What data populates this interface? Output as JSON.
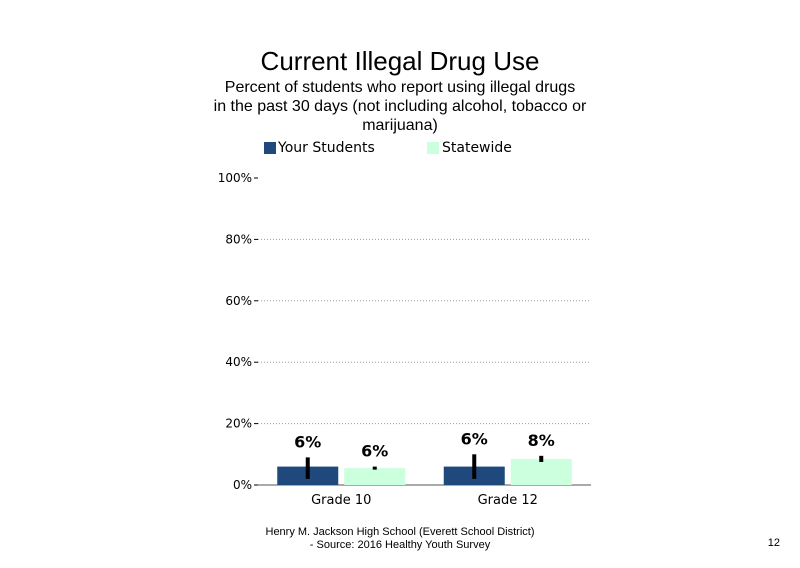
{
  "chart_data": {
    "type": "bar",
    "title": "Current Illegal Drug Use",
    "subtitle_lines": [
      "Percent of students who report using illegal drugs",
      "in the past 30 days (not including alcohol, tobacco or",
      "marijuana)"
    ],
    "categories": [
      "Grade 10",
      "Grade 12"
    ],
    "series": [
      {
        "name": "Your Students",
        "color": "#1f497d",
        "values": [
          6,
          6
        ],
        "labels": [
          "6%",
          "6%"
        ],
        "error_low": [
          2,
          2
        ],
        "error_high": [
          9,
          10
        ]
      },
      {
        "name": "Statewide",
        "color": "#ccffdd",
        "values": [
          5.5,
          8.5
        ],
        "labels": [
          "6%",
          "8%"
        ],
        "error_low": [
          5,
          7.5
        ],
        "error_high": [
          6,
          9.5
        ]
      }
    ],
    "y_ticks": [
      "0%",
      "20%",
      "40%",
      "60%",
      "80%",
      "100%"
    ],
    "ylim": [
      0,
      100
    ],
    "grid": true,
    "legend_position": "top"
  },
  "footer": {
    "line1": "Henry M.  Jackson High  School (Everett School District)",
    "line2": "- Source: 2016 Healthy  Youth Survey"
  },
  "page_number": "12"
}
